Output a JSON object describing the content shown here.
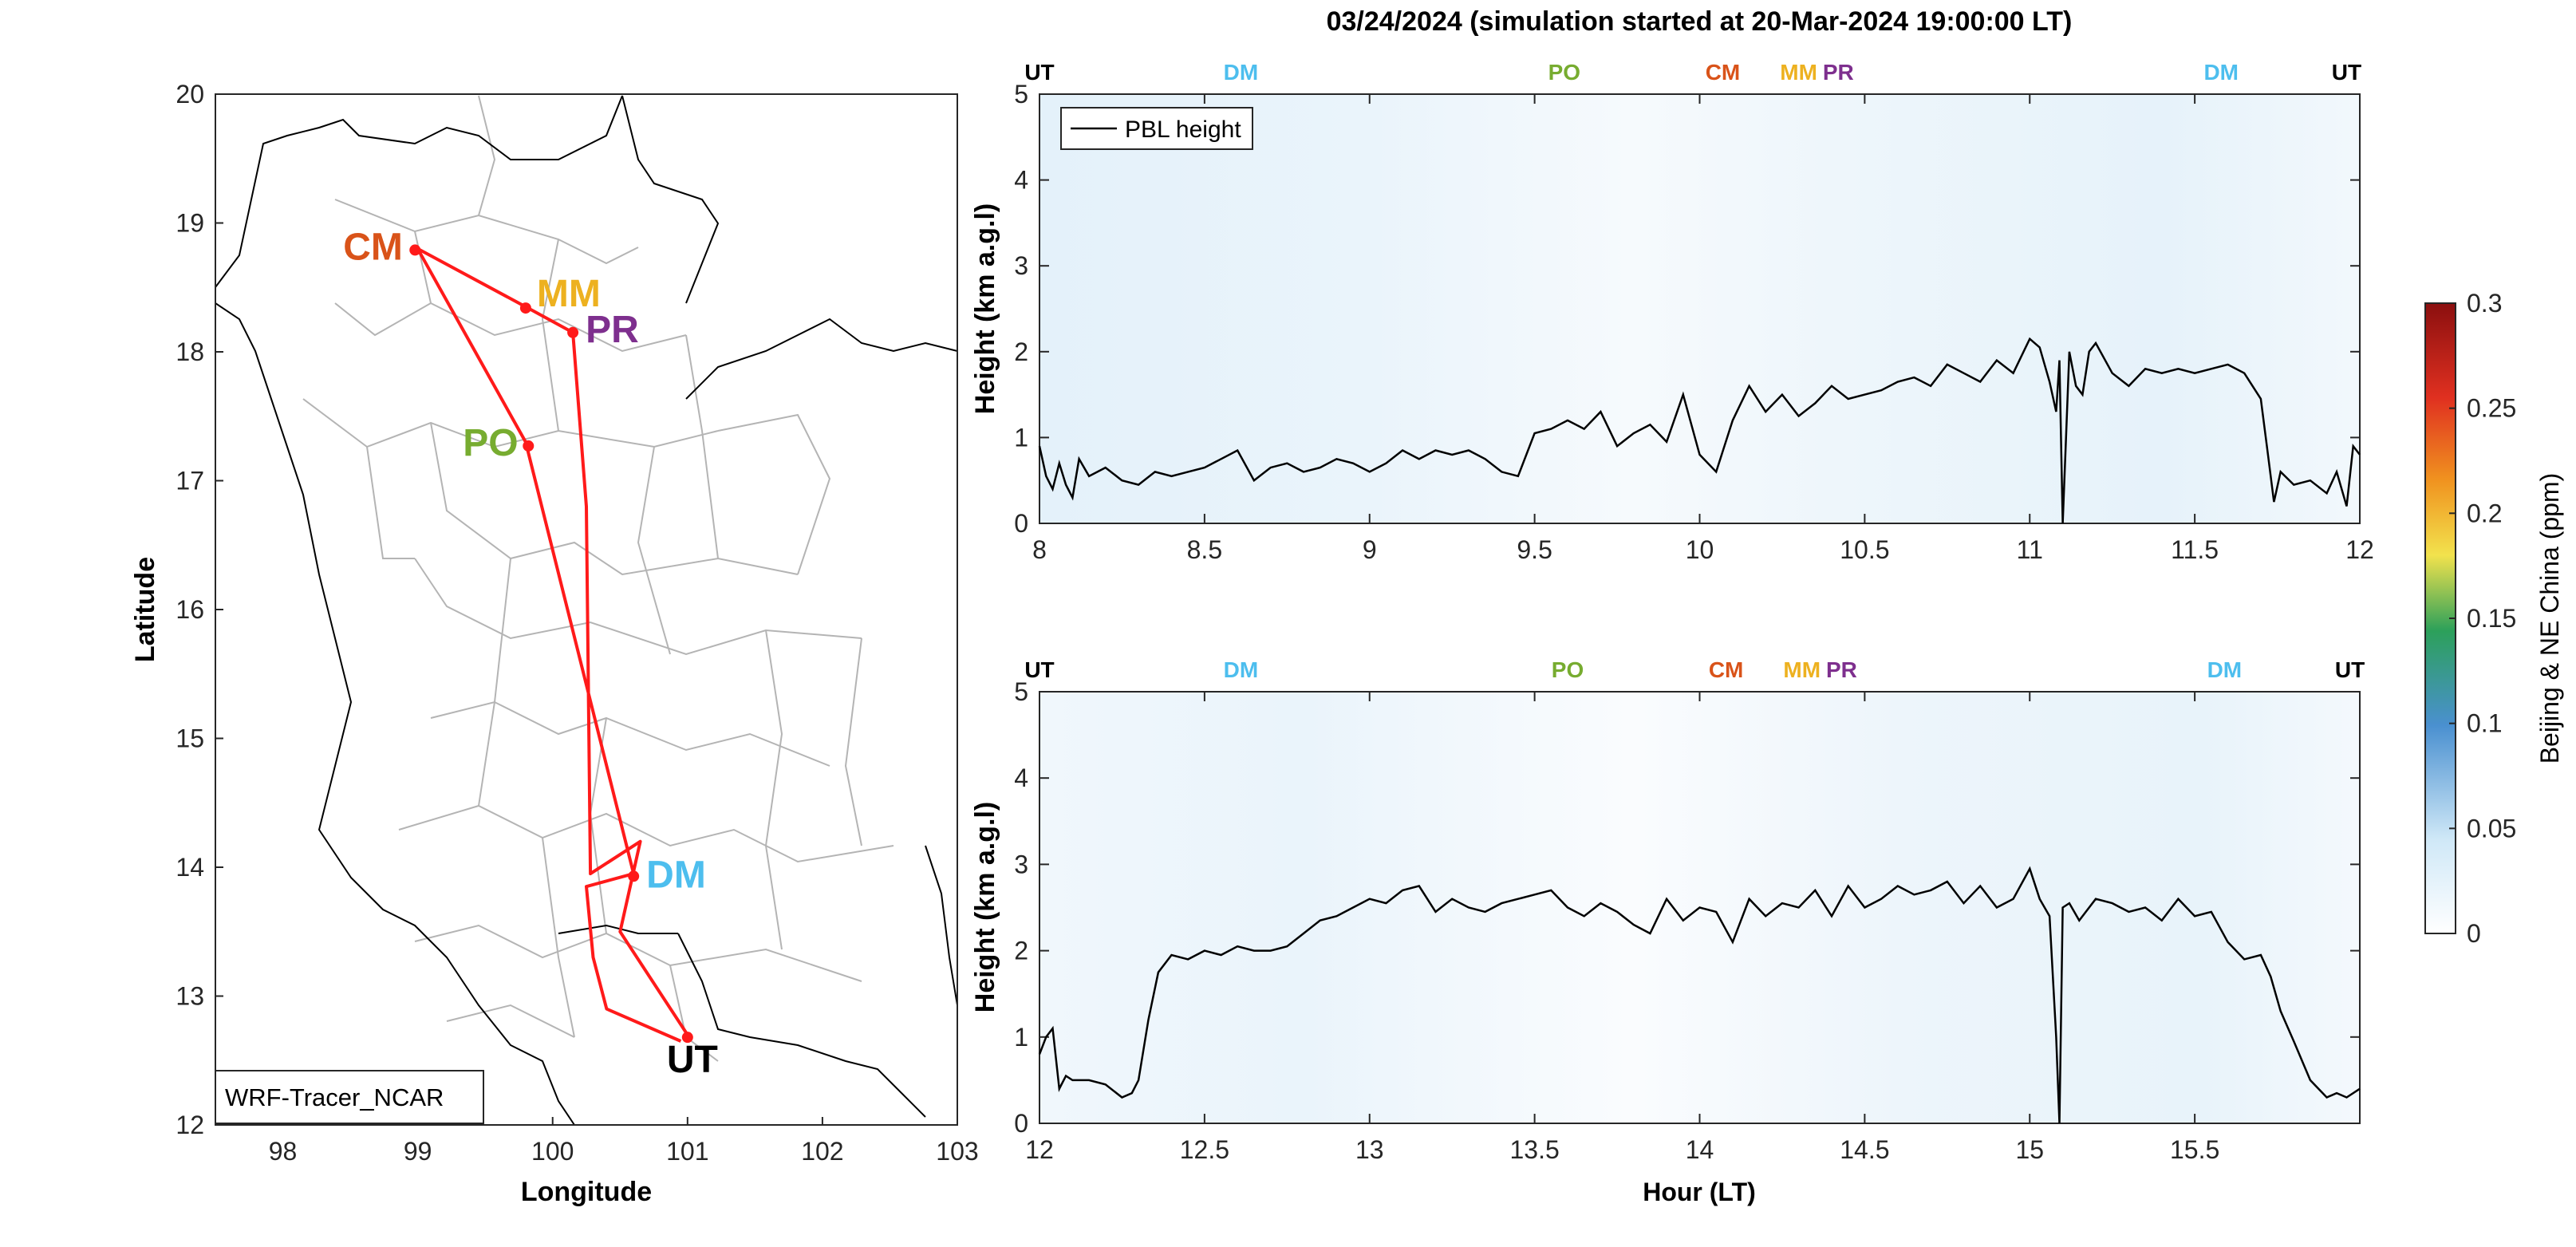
{
  "figure": {
    "title": "03/24/2024 (simulation started at 20-Mar-2024 19:00:00 LT)"
  },
  "chart_data": [
    {
      "type": "map",
      "xlabel": "Longitude",
      "ylabel": "Latitude",
      "xlim": [
        97.5,
        103
      ],
      "ylim": [
        12,
        20
      ],
      "x_ticks": [
        "98",
        "99",
        "100",
        "101",
        "102",
        "103"
      ],
      "y_ticks": [
        "12",
        "13",
        "14",
        "15",
        "16",
        "17",
        "18",
        "19",
        "20"
      ],
      "caption": "WRF-Tracer_NCAR",
      "route_color": "#ff1a1a",
      "route": [
        {
          "lon": 100.95,
          "lat": 12.65
        },
        {
          "lon": 100.4,
          "lat": 12.9
        },
        {
          "lon": 100.3,
          "lat": 13.3
        },
        {
          "lon": 100.25,
          "lat": 13.85
        },
        {
          "lon": 100.6,
          "lat": 13.95
        },
        {
          "lon": 99.8,
          "lat": 17.3
        },
        {
          "lon": 99.0,
          "lat": 18.8
        },
        {
          "lon": 99.8,
          "lat": 18.35
        },
        {
          "lon": 100.15,
          "lat": 18.15
        },
        {
          "lon": 100.25,
          "lat": 16.8
        },
        {
          "lon": 100.28,
          "lat": 13.95
        },
        {
          "lon": 100.65,
          "lat": 14.2
        },
        {
          "lon": 100.5,
          "lat": 13.5
        },
        {
          "lon": 101.0,
          "lat": 12.7
        }
      ],
      "sites": [
        {
          "code": "CM",
          "lon": 98.98,
          "lat": 18.79,
          "color": "#d95319"
        },
        {
          "code": "MM",
          "lon": 99.8,
          "lat": 18.34,
          "color": "#edb120"
        },
        {
          "code": "PR",
          "lon": 100.15,
          "lat": 18.15,
          "color": "#7e2f8e"
        },
        {
          "code": "PO",
          "lon": 99.82,
          "lat": 17.27,
          "color": "#77ac30"
        },
        {
          "code": "DM",
          "lon": 100.6,
          "lat": 13.93,
          "color": "#4dbeee"
        },
        {
          "code": "UT",
          "lon": 101.0,
          "lat": 12.68,
          "color": "#000000"
        }
      ]
    },
    {
      "type": "line",
      "panel": "top",
      "xlabel": "",
      "ylabel": "Height (km a.g.l)",
      "xlim": [
        8,
        12
      ],
      "ylim": [
        0,
        5
      ],
      "x_ticks": [
        "8",
        "8.5",
        "9",
        "9.5",
        "10",
        "10.5",
        "11",
        "11.5",
        "12"
      ],
      "y_ticks": [
        "0",
        "1",
        "2",
        "3",
        "4",
        "5"
      ],
      "legend": "PBL height",
      "legend_position": "top-left",
      "site_markers": [
        {
          "code": "UT",
          "x": 8.0,
          "color": "#000000"
        },
        {
          "code": "DM",
          "x": 8.61,
          "color": "#4dbeee"
        },
        {
          "code": "PO",
          "x": 9.59,
          "color": "#77ac30"
        },
        {
          "code": "CM",
          "x": 10.07,
          "color": "#d95319"
        },
        {
          "code": "MM",
          "x": 10.3,
          "color": "#edb120"
        },
        {
          "code": "PR",
          "x": 10.42,
          "color": "#7e2f8e"
        },
        {
          "code": "DM",
          "x": 11.58,
          "color": "#4dbeee"
        },
        {
          "code": "UT",
          "x": 11.96,
          "color": "#000000"
        }
      ],
      "series": [
        {
          "name": "PBL height",
          "x": [
            8.0,
            8.02,
            8.04,
            8.06,
            8.08,
            8.1,
            8.12,
            8.15,
            8.2,
            8.25,
            8.3,
            8.35,
            8.4,
            8.45,
            8.5,
            8.55,
            8.6,
            8.65,
            8.7,
            8.75,
            8.8,
            8.85,
            8.9,
            8.95,
            9.0,
            9.05,
            9.1,
            9.15,
            9.2,
            9.25,
            9.3,
            9.35,
            9.4,
            9.45,
            9.5,
            9.55,
            9.6,
            9.65,
            9.7,
            9.75,
            9.8,
            9.85,
            9.9,
            9.95,
            10.0,
            10.05,
            10.1,
            10.15,
            10.2,
            10.25,
            10.3,
            10.35,
            10.4,
            10.45,
            10.5,
            10.55,
            10.6,
            10.65,
            10.7,
            10.75,
            10.8,
            10.85,
            10.9,
            10.95,
            11.0,
            11.03,
            11.06,
            11.08,
            11.09,
            11.1,
            11.12,
            11.14,
            11.16,
            11.18,
            11.2,
            11.25,
            11.3,
            11.35,
            11.4,
            11.45,
            11.5,
            11.55,
            11.6,
            11.65,
            11.7,
            11.72,
            11.74,
            11.76,
            11.8,
            11.85,
            11.9,
            11.93,
            11.96,
            11.98,
            12.0
          ],
          "y": [
            0.9,
            0.55,
            0.4,
            0.7,
            0.45,
            0.3,
            0.75,
            0.55,
            0.65,
            0.5,
            0.45,
            0.6,
            0.55,
            0.6,
            0.65,
            0.75,
            0.85,
            0.5,
            0.65,
            0.7,
            0.6,
            0.65,
            0.75,
            0.7,
            0.6,
            0.7,
            0.85,
            0.75,
            0.85,
            0.8,
            0.85,
            0.75,
            0.6,
            0.55,
            1.05,
            1.1,
            1.2,
            1.1,
            1.3,
            0.9,
            1.05,
            1.15,
            0.95,
            1.5,
            0.8,
            0.6,
            1.2,
            1.6,
            1.3,
            1.5,
            1.25,
            1.4,
            1.6,
            1.45,
            1.5,
            1.55,
            1.65,
            1.7,
            1.6,
            1.85,
            1.75,
            1.65,
            1.9,
            1.75,
            2.15,
            2.05,
            1.65,
            1.3,
            1.9,
            0.0,
            2.0,
            1.6,
            1.5,
            2.0,
            2.1,
            1.75,
            1.6,
            1.8,
            1.75,
            1.8,
            1.75,
            1.8,
            1.85,
            1.75,
            1.45,
            0.85,
            0.25,
            0.6,
            0.45,
            0.5,
            0.35,
            0.6,
            0.2,
            0.9,
            0.8
          ]
        }
      ]
    },
    {
      "type": "line",
      "panel": "bottom",
      "xlabel": "Hour (LT)",
      "ylabel": "Height (km a.g.l)",
      "xlim": [
        12,
        16
      ],
      "ylim": [
        0,
        5
      ],
      "x_ticks": [
        "12",
        "12.5",
        "13",
        "13.5",
        "14",
        "14.5",
        "15",
        "15.5"
      ],
      "y_ticks": [
        "0",
        "1",
        "2",
        "3",
        "4",
        "5"
      ],
      "site_markers": [
        {
          "code": "UT",
          "x": 12.0,
          "color": "#000000"
        },
        {
          "code": "DM",
          "x": 12.61,
          "color": "#4dbeee"
        },
        {
          "code": "PO",
          "x": 13.6,
          "color": "#77ac30"
        },
        {
          "code": "CM",
          "x": 14.08,
          "color": "#d95319"
        },
        {
          "code": "MM",
          "x": 14.31,
          "color": "#edb120"
        },
        {
          "code": "PR",
          "x": 14.43,
          "color": "#7e2f8e"
        },
        {
          "code": "DM",
          "x": 15.59,
          "color": "#4dbeee"
        },
        {
          "code": "UT",
          "x": 15.97,
          "color": "#000000"
        }
      ],
      "series": [
        {
          "name": "PBL height",
          "x": [
            12.0,
            12.02,
            12.04,
            12.06,
            12.08,
            12.1,
            12.15,
            12.2,
            12.25,
            12.28,
            12.3,
            12.33,
            12.36,
            12.4,
            12.45,
            12.5,
            12.55,
            12.6,
            12.65,
            12.7,
            12.75,
            12.8,
            12.85,
            12.9,
            12.95,
            13.0,
            13.05,
            13.1,
            13.15,
            13.2,
            13.25,
            13.3,
            13.35,
            13.4,
            13.45,
            13.5,
            13.55,
            13.6,
            13.65,
            13.7,
            13.75,
            13.8,
            13.85,
            13.9,
            13.95,
            14.0,
            14.05,
            14.1,
            14.15,
            14.2,
            14.25,
            14.3,
            14.35,
            14.4,
            14.45,
            14.5,
            14.55,
            14.6,
            14.65,
            14.7,
            14.75,
            14.8,
            14.85,
            14.9,
            14.95,
            15.0,
            15.03,
            15.06,
            15.08,
            15.09,
            15.1,
            15.12,
            15.15,
            15.2,
            15.25,
            15.3,
            15.35,
            15.4,
            15.45,
            15.5,
            15.55,
            15.6,
            15.65,
            15.7,
            15.73,
            15.76,
            15.8,
            15.85,
            15.9,
            15.93,
            15.96,
            16.0
          ],
          "y": [
            0.8,
            1.0,
            1.1,
            0.4,
            0.55,
            0.5,
            0.5,
            0.45,
            0.3,
            0.35,
            0.5,
            1.2,
            1.75,
            1.95,
            1.9,
            2.0,
            1.95,
            2.05,
            2.0,
            2.0,
            2.05,
            2.2,
            2.35,
            2.4,
            2.5,
            2.6,
            2.55,
            2.7,
            2.75,
            2.45,
            2.6,
            2.5,
            2.45,
            2.55,
            2.6,
            2.65,
            2.7,
            2.5,
            2.4,
            2.55,
            2.45,
            2.3,
            2.2,
            2.6,
            2.35,
            2.5,
            2.45,
            2.1,
            2.6,
            2.4,
            2.55,
            2.5,
            2.7,
            2.4,
            2.75,
            2.5,
            2.6,
            2.75,
            2.65,
            2.7,
            2.8,
            2.55,
            2.75,
            2.5,
            2.6,
            2.95,
            2.6,
            2.4,
            1.0,
            0.0,
            2.5,
            2.55,
            2.35,
            2.6,
            2.55,
            2.45,
            2.5,
            2.35,
            2.6,
            2.4,
            2.45,
            2.1,
            1.9,
            1.95,
            1.7,
            1.3,
            0.95,
            0.5,
            0.3,
            0.35,
            0.3,
            0.4
          ]
        }
      ]
    },
    {
      "type": "colorbar",
      "label": "Beijing & NE China (ppm)",
      "range": [
        0,
        0.3
      ],
      "ticks": [
        "0",
        "0.05",
        "0.1",
        "0.15",
        "0.2",
        "0.25",
        "0.3"
      ],
      "colormap": [
        "#ffffff",
        "#cfe8f7",
        "#4a90d0",
        "#2ca05a",
        "#f2e24d",
        "#f0921f",
        "#e03020",
        "#8b0f0f"
      ]
    }
  ]
}
